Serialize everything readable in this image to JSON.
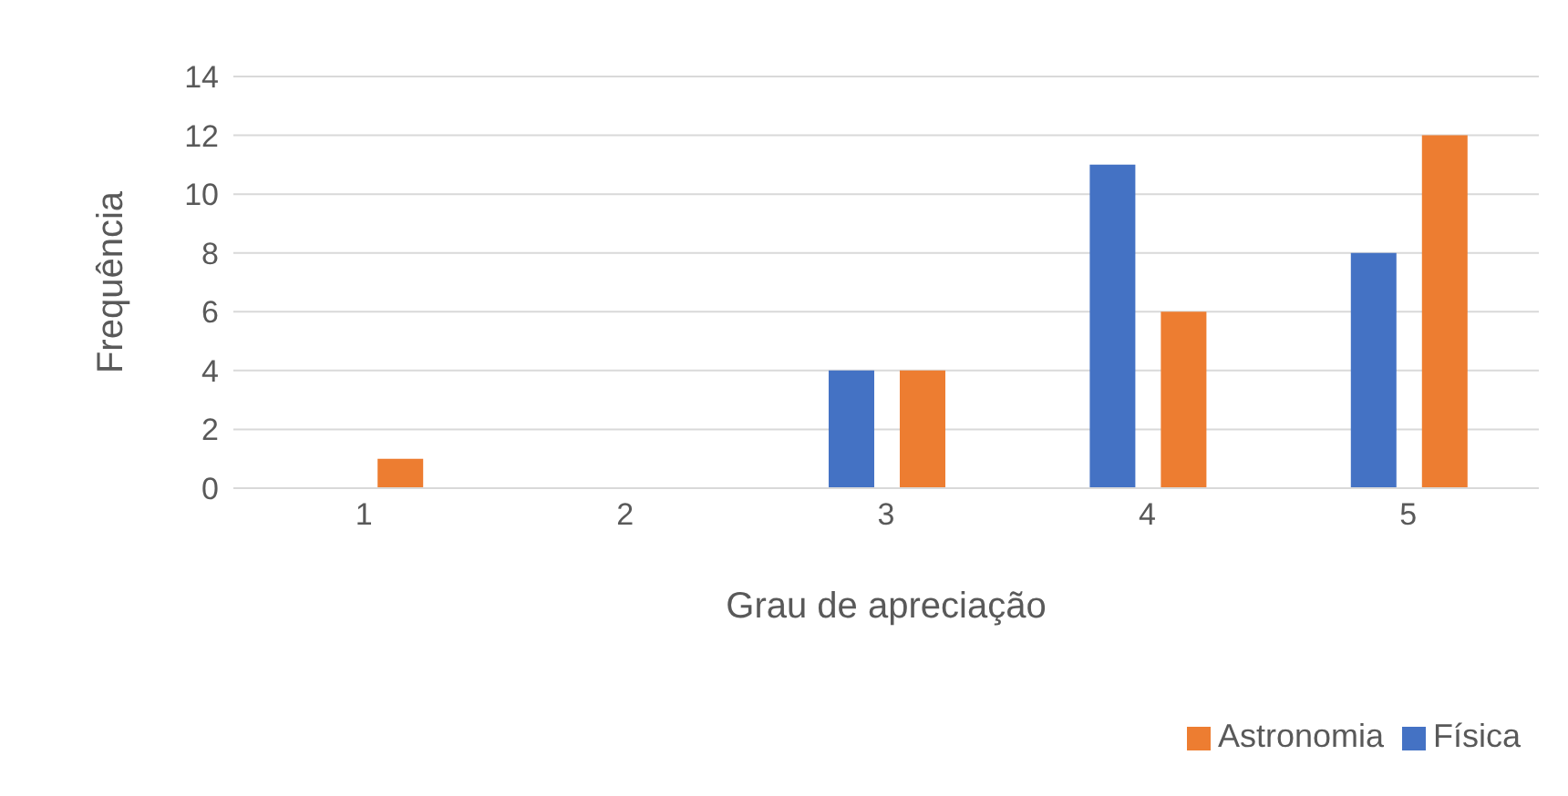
{
  "chart_data": {
    "type": "bar",
    "xlabel": "Grau de apreciação",
    "ylabel": "Frequência",
    "categories": [
      "1",
      "2",
      "3",
      "4",
      "5"
    ],
    "series": [
      {
        "name": "Física",
        "color": "#4472c4",
        "values": [
          0,
          0,
          4,
          11,
          8
        ]
      },
      {
        "name": "Astronomia",
        "color": "#ed7d31",
        "values": [
          1,
          0,
          4,
          6,
          12
        ]
      }
    ],
    "ylim": [
      0,
      14
    ],
    "yticks": [
      0,
      2,
      4,
      6,
      8,
      10,
      12,
      14
    ],
    "grid": "y",
    "legend": "bottom right"
  }
}
